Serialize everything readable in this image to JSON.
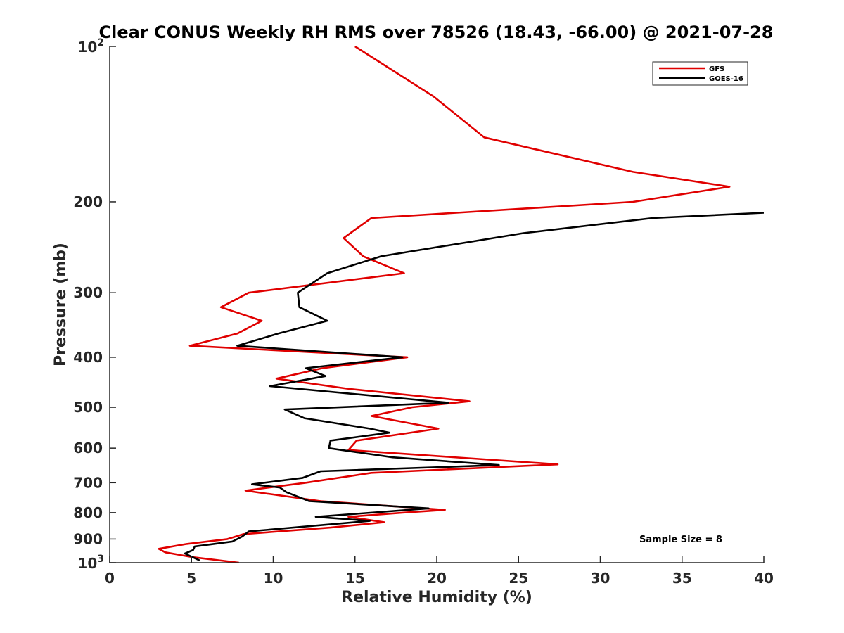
{
  "chart_data": {
    "type": "line",
    "title": "Clear CONUS Weekly RH RMS over 78526 (18.43, -66.00) @ 2021-07-28",
    "xlabel": "Relative Humidity (%)",
    "ylabel": "Pressure (mb)",
    "xlim": [
      0,
      40
    ],
    "ylim": [
      100,
      1000
    ],
    "y_scale": "log",
    "y_reversed": true,
    "x_ticks": [
      "0",
      "5",
      "10",
      "15",
      "20",
      "25",
      "30",
      "35",
      "40"
    ],
    "y_ticks": [
      {
        "value": 100,
        "base": "10",
        "exp": "2"
      },
      {
        "value": 200,
        "label": "200"
      },
      {
        "value": 300,
        "label": "300"
      },
      {
        "value": 400,
        "label": "400"
      },
      {
        "value": 500,
        "label": "500"
      },
      {
        "value": 600,
        "label": "600"
      },
      {
        "value": 700,
        "label": "700"
      },
      {
        "value": 800,
        "label": "800"
      },
      {
        "value": 900,
        "label": "900"
      },
      {
        "value": 1000,
        "base": "10",
        "exp": "3"
      }
    ],
    "legend_position": "top-right",
    "annotation": "Sample Size = 8",
    "series": [
      {
        "name": "GFS",
        "color": "#e00000",
        "points": [
          [
            15,
            100
          ],
          [
            19.8,
            125
          ],
          [
            22.9,
            150
          ],
          [
            32,
            175
          ],
          [
            37.9,
            187
          ],
          [
            32,
            200
          ],
          [
            16,
            215
          ],
          [
            14.3,
            235
          ],
          [
            15.5,
            255
          ],
          [
            18,
            275
          ],
          [
            8.5,
            300
          ],
          [
            6.8,
            320
          ],
          [
            9.3,
            340
          ],
          [
            7.8,
            360
          ],
          [
            4.9,
            380
          ],
          [
            18.2,
            400
          ],
          [
            13,
            420
          ],
          [
            10.2,
            440
          ],
          [
            14.5,
            460
          ],
          [
            22,
            487
          ],
          [
            18.5,
            500
          ],
          [
            16,
            520
          ],
          [
            20.1,
            550
          ],
          [
            15.1,
            580
          ],
          [
            14.6,
            605
          ],
          [
            27.4,
            645
          ],
          [
            16,
            670
          ],
          [
            12,
            700
          ],
          [
            8.3,
            725
          ],
          [
            12.9,
            760
          ],
          [
            20.5,
            790
          ],
          [
            17.9,
            800
          ],
          [
            14.6,
            815
          ],
          [
            16.8,
            835
          ],
          [
            13.5,
            855
          ],
          [
            8.2,
            880
          ],
          [
            7.2,
            900
          ],
          [
            4.7,
            920
          ],
          [
            3,
            940
          ],
          [
            3.4,
            955
          ],
          [
            5,
            975
          ],
          [
            7.9,
            1000
          ]
        ]
      },
      {
        "name": "GOES-16",
        "color": "#000000",
        "points": [
          [
            40,
            210
          ],
          [
            33.2,
            215
          ],
          [
            25.3,
            230
          ],
          [
            16.6,
            255
          ],
          [
            13.3,
            275
          ],
          [
            11.5,
            300
          ],
          [
            11.6,
            320
          ],
          [
            13.3,
            340
          ],
          [
            10.3,
            360
          ],
          [
            7.8,
            380
          ],
          [
            17.9,
            400
          ],
          [
            12,
            420
          ],
          [
            13.2,
            435
          ],
          [
            9.8,
            455
          ],
          [
            20.7,
            490
          ],
          [
            10.7,
            505
          ],
          [
            11.9,
            525
          ],
          [
            15.9,
            550
          ],
          [
            17.1,
            560
          ],
          [
            13.5,
            580
          ],
          [
            13.4,
            600
          ],
          [
            17.3,
            625
          ],
          [
            23.8,
            647
          ],
          [
            12.9,
            665
          ],
          [
            11.8,
            685
          ],
          [
            8.7,
            705
          ],
          [
            10.4,
            715
          ],
          [
            10.8,
            730
          ],
          [
            12.2,
            760
          ],
          [
            19.5,
            785
          ],
          [
            12.6,
            815
          ],
          [
            15.9,
            830
          ],
          [
            8.5,
            870
          ],
          [
            8.1,
            890
          ],
          [
            7.5,
            910
          ],
          [
            5.2,
            930
          ],
          [
            5.1,
            945
          ],
          [
            4.6,
            960
          ],
          [
            5.5,
            990
          ]
        ]
      }
    ]
  }
}
